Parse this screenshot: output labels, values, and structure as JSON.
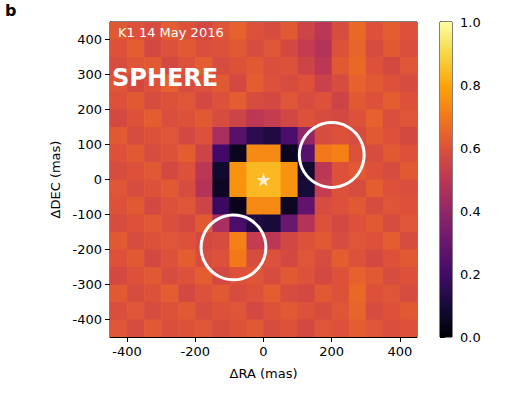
{
  "chart_data": {
    "type": "heatmap",
    "panel": "b",
    "title": "K1 14 May 2016",
    "annotations": [
      "SPHERE"
    ],
    "xlabel": "ΔRA (mas)",
    "ylabel": "ΔDEC (mas)",
    "xlim": [
      -450,
      450
    ],
    "ylim": [
      -450,
      450
    ],
    "xticks": [
      -400,
      -200,
      0,
      200,
      400
    ],
    "yticks": [
      -400,
      -300,
      -200,
      -100,
      0,
      100,
      200,
      300,
      400
    ],
    "grid": false,
    "x": [
      -425,
      -375,
      -325,
      -275,
      -225,
      -175,
      -125,
      -75,
      -25,
      25,
      75,
      125,
      175,
      225,
      275,
      325,
      375,
      425
    ],
    "y": [
      425,
      375,
      325,
      275,
      225,
      175,
      125,
      75,
      25,
      -25,
      -75,
      -125,
      -175,
      -225,
      -275,
      -325,
      -375,
      -425
    ],
    "z": [
      [
        0.62,
        0.6,
        0.58,
        0.63,
        0.6,
        0.57,
        0.61,
        0.64,
        0.6,
        0.58,
        0.62,
        0.55,
        0.5,
        0.58,
        0.66,
        0.6,
        0.63,
        0.6
      ],
      [
        0.6,
        0.63,
        0.57,
        0.6,
        0.62,
        0.59,
        0.6,
        0.62,
        0.58,
        0.61,
        0.57,
        0.52,
        0.48,
        0.6,
        0.65,
        0.58,
        0.62,
        0.59
      ],
      [
        0.58,
        0.61,
        0.62,
        0.57,
        0.6,
        0.63,
        0.58,
        0.6,
        0.62,
        0.59,
        0.6,
        0.55,
        0.5,
        0.62,
        0.66,
        0.6,
        0.57,
        0.61
      ],
      [
        0.61,
        0.57,
        0.6,
        0.64,
        0.58,
        0.6,
        0.62,
        0.57,
        0.63,
        0.6,
        0.58,
        0.6,
        0.54,
        0.58,
        0.64,
        0.62,
        0.6,
        0.58
      ],
      [
        0.6,
        0.62,
        0.58,
        0.6,
        0.61,
        0.57,
        0.6,
        0.63,
        0.58,
        0.57,
        0.61,
        0.58,
        0.6,
        0.55,
        0.62,
        0.6,
        0.63,
        0.6
      ],
      [
        0.57,
        0.6,
        0.63,
        0.59,
        0.6,
        0.62,
        0.58,
        0.55,
        0.5,
        0.52,
        0.56,
        0.6,
        0.58,
        0.57,
        0.6,
        0.64,
        0.59,
        0.61
      ],
      [
        0.62,
        0.58,
        0.6,
        0.61,
        0.57,
        0.6,
        0.45,
        0.25,
        0.15,
        0.12,
        0.22,
        0.4,
        0.58,
        0.6,
        0.58,
        0.62,
        0.6,
        0.57
      ],
      [
        0.6,
        0.62,
        0.58,
        0.6,
        0.63,
        0.55,
        0.2,
        0.05,
        0.74,
        0.74,
        0.05,
        0.25,
        0.7,
        0.72,
        0.6,
        0.58,
        0.62,
        0.6
      ],
      [
        0.58,
        0.6,
        0.62,
        0.57,
        0.6,
        0.5,
        0.08,
        0.76,
        0.84,
        0.84,
        0.76,
        0.08,
        0.5,
        0.6,
        0.62,
        0.6,
        0.58,
        0.62
      ],
      [
        0.61,
        0.58,
        0.6,
        0.62,
        0.58,
        0.48,
        0.06,
        0.76,
        0.84,
        0.84,
        0.76,
        0.1,
        0.52,
        0.6,
        0.58,
        0.63,
        0.6,
        0.59
      ],
      [
        0.6,
        0.62,
        0.57,
        0.6,
        0.61,
        0.55,
        0.18,
        0.04,
        0.74,
        0.74,
        0.06,
        0.28,
        0.58,
        0.6,
        0.62,
        0.58,
        0.61,
        0.6
      ],
      [
        0.58,
        0.6,
        0.62,
        0.59,
        0.57,
        0.62,
        0.45,
        0.22,
        0.12,
        0.1,
        0.3,
        0.48,
        0.6,
        0.57,
        0.6,
        0.62,
        0.58,
        0.61
      ],
      [
        0.62,
        0.58,
        0.6,
        0.61,
        0.6,
        0.57,
        0.58,
        0.72,
        0.52,
        0.5,
        0.56,
        0.6,
        0.62,
        0.58,
        0.61,
        0.6,
        0.63,
        0.58
      ],
      [
        0.6,
        0.62,
        0.57,
        0.6,
        0.63,
        0.58,
        0.6,
        0.7,
        0.58,
        0.6,
        0.57,
        0.61,
        0.58,
        0.63,
        0.6,
        0.57,
        0.6,
        0.62
      ],
      [
        0.57,
        0.6,
        0.62,
        0.58,
        0.6,
        0.63,
        0.57,
        0.6,
        0.61,
        0.58,
        0.62,
        0.6,
        0.57,
        0.6,
        0.64,
        0.62,
        0.58,
        0.6
      ],
      [
        0.62,
        0.58,
        0.6,
        0.63,
        0.57,
        0.6,
        0.62,
        0.58,
        0.6,
        0.63,
        0.58,
        0.57,
        0.62,
        0.6,
        0.66,
        0.6,
        0.61,
        0.58
      ],
      [
        0.59,
        0.61,
        0.58,
        0.6,
        0.62,
        0.58,
        0.6,
        0.61,
        0.57,
        0.6,
        0.62,
        0.6,
        0.58,
        0.61,
        0.65,
        0.58,
        0.6,
        0.62
      ],
      [
        0.61,
        0.58,
        0.62,
        0.59,
        0.6,
        0.61,
        0.58,
        0.6,
        0.62,
        0.58,
        0.6,
        0.57,
        0.61,
        0.6,
        0.63,
        0.61,
        0.59,
        0.6
      ]
    ],
    "colorbar": {
      "range": [
        0,
        1
      ],
      "ticks": [
        {
          "value": 0,
          "label": "0.0"
        },
        {
          "value": 0.2,
          "label": "0.2"
        },
        {
          "value": 0.4,
          "label": "0.4"
        },
        {
          "value": 0.6,
          "label": "0.6"
        },
        {
          "value": 0.8,
          "label": "0.8"
        },
        {
          "value": 1,
          "label": "1.0"
        }
      ]
    },
    "circles": [
      {
        "x": 200,
        "y": 70,
        "r": 95,
        "color": "#ffffff"
      },
      {
        "x": -88,
        "y": -194,
        "r": 95,
        "color": "#ffffff"
      }
    ],
    "star": {
      "x": 0,
      "y": 0,
      "marker": "star",
      "color": "#ffffff"
    }
  }
}
